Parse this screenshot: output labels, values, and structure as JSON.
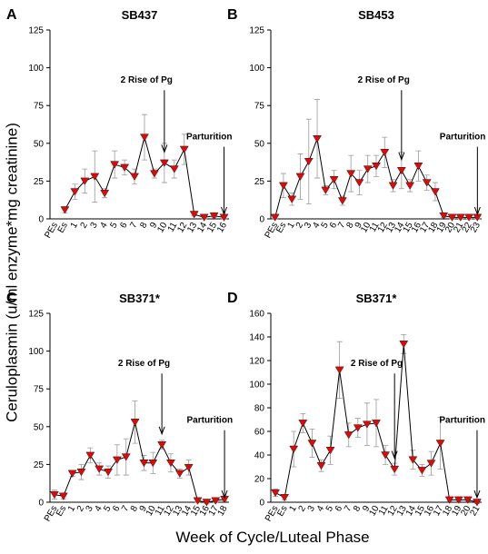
{
  "y_label": "Ceruloplasmin (u/ml enzyme*mg creatinine)",
  "x_label": "Week of Cycle/Luteal Phase",
  "chart_data": [
    {
      "type": "line",
      "label": "A",
      "title": "SB437",
      "color": "#cc1111",
      "categories": [
        "PEs",
        "Es",
        "1",
        "2",
        "3",
        "4",
        "5",
        "6",
        "7",
        "8",
        "9",
        "10",
        "11",
        "12",
        "13",
        "14",
        "15",
        "16"
      ],
      "values": [
        null,
        6,
        18,
        25,
        28,
        17,
        36,
        34,
        28,
        54,
        30,
        37,
        33,
        46,
        3,
        1,
        2,
        1
      ],
      "errors": [
        null,
        2,
        5,
        8,
        17,
        3,
        9,
        5,
        5,
        15,
        3,
        13,
        6,
        10,
        1,
        1,
        1,
        1
      ],
      "ylim": [
        0,
        125
      ],
      "yticks": [
        0,
        25,
        50,
        75,
        100,
        125
      ],
      "annotations": [
        {
          "text": "2 Rise of Pg",
          "x": "10"
        },
        {
          "text": "Parturition",
          "x": "16"
        }
      ]
    },
    {
      "type": "line",
      "label": "B",
      "title": "SB453",
      "color": "#cc1111",
      "categories": [
        "PEs",
        "Es",
        "1",
        "2",
        "3",
        "4",
        "5",
        "6",
        "7",
        "8",
        "9",
        "10",
        "11",
        "12",
        "13",
        "14",
        "15",
        "16",
        "17",
        "18",
        "19",
        "20",
        "21",
        "22",
        "23"
      ],
      "values": [
        1,
        22,
        13,
        28,
        38,
        53,
        19,
        26,
        12,
        30,
        24,
        33,
        35,
        44,
        22,
        32,
        22,
        35,
        24,
        18,
        2,
        1,
        1,
        1,
        1
      ],
      "errors": [
        1,
        8,
        4,
        15,
        28,
        26,
        3,
        6,
        3,
        12,
        8,
        9,
        7,
        10,
        4,
        12,
        4,
        10,
        5,
        6,
        1,
        1,
        1,
        1,
        1
      ],
      "ylim": [
        0,
        125
      ],
      "yticks": [
        0,
        25,
        50,
        75,
        100,
        125
      ],
      "annotations": [
        {
          "text": "2 Rise of Pg",
          "x": "14"
        },
        {
          "text": "Parturition",
          "x": "23"
        }
      ]
    },
    {
      "type": "line",
      "label": "C",
      "title": "SB371*",
      "color": "#cc1111",
      "categories": [
        "PEs",
        "Es",
        "1",
        "2",
        "3",
        "4",
        "5",
        "6",
        "7",
        "8",
        "9",
        "10",
        "11",
        "12",
        "13",
        "14",
        "15",
        "16",
        "17",
        "18"
      ],
      "values": [
        5,
        4,
        19,
        20,
        31,
        22,
        20,
        28,
        30,
        53,
        26,
        26,
        38,
        26,
        19,
        23,
        1,
        0,
        1,
        2
      ],
      "errors": [
        3,
        2,
        2,
        5,
        5,
        4,
        4,
        10,
        12,
        14,
        5,
        7,
        3,
        6,
        3,
        5,
        1,
        1,
        1,
        1
      ],
      "ylim": [
        0,
        125
      ],
      "yticks": [
        0,
        25,
        50,
        75,
        100,
        125
      ],
      "annotations": [
        {
          "text": "2 Rise of Pg",
          "x": "11"
        },
        {
          "text": "Parturition",
          "x": "18"
        }
      ]
    },
    {
      "type": "line",
      "label": "D",
      "title": "SB371*",
      "color": "#cc1111",
      "categories": [
        "PEs",
        "Es",
        "1",
        "2",
        "3",
        "4",
        "5",
        "6",
        "7",
        "8",
        "9",
        "10",
        "11",
        "12",
        "13",
        "14",
        "15",
        "16",
        "17",
        "18",
        "19",
        "20",
        "21"
      ],
      "values": [
        8,
        4,
        45,
        67,
        50,
        31,
        44,
        112,
        57,
        63,
        66,
        67,
        40,
        28,
        134,
        36,
        27,
        33,
        50,
        2,
        2,
        2,
        0
      ],
      "errors": [
        3,
        2,
        15,
        8,
        12,
        5,
        12,
        24,
        10,
        8,
        18,
        20,
        8,
        5,
        8,
        8,
        5,
        10,
        22,
        1,
        1,
        1,
        1
      ],
      "ylim": [
        0,
        160
      ],
      "yticks": [
        0,
        20,
        40,
        60,
        80,
        100,
        120,
        140,
        160
      ],
      "annotations": [
        {
          "text": "2 Rise of Pg",
          "x": "12"
        },
        {
          "text": "Parturition",
          "x": "21"
        }
      ]
    }
  ]
}
